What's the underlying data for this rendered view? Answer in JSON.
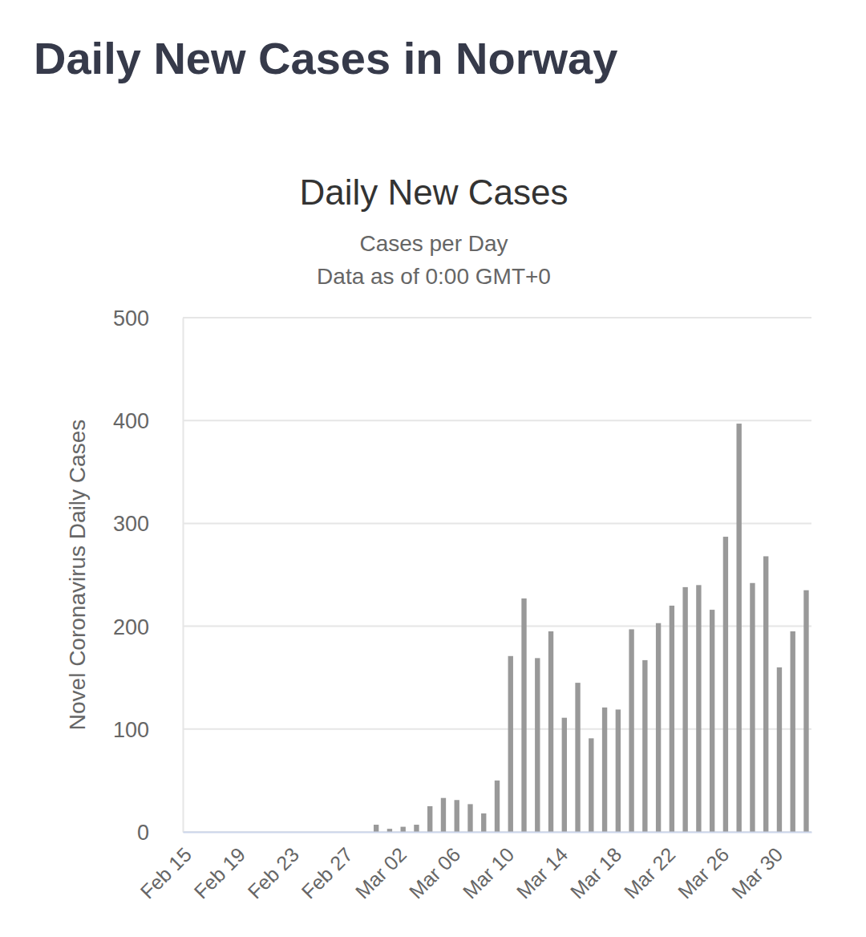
{
  "page_title": "Daily New Cases in Norway",
  "chart_data": {
    "type": "bar",
    "title": "Daily New Cases",
    "subtitle": "Cases per Day",
    "note": "Data as of 0:00 GMT+0",
    "y_label": "Novel Coronavirus Daily Cases",
    "categories": [
      "Feb 15",
      null,
      null,
      null,
      "Feb 19",
      null,
      null,
      null,
      "Feb 23",
      null,
      null,
      null,
      "Feb 27",
      null,
      null,
      null,
      "Mar 02",
      null,
      null,
      null,
      "Mar 06",
      null,
      null,
      null,
      "Mar 10",
      null,
      null,
      null,
      "Mar 14",
      null,
      null,
      null,
      "Mar 18",
      null,
      null,
      null,
      "Mar 22",
      null,
      null,
      null,
      "Mar 26",
      null,
      null,
      null,
      "Mar 30",
      null,
      null
    ],
    "values": [
      0,
      0,
      0,
      0,
      0,
      0,
      0,
      0,
      0,
      0,
      0,
      0,
      0,
      0,
      7,
      3,
      5,
      7,
      25,
      33,
      31,
      27,
      18,
      50,
      171,
      227,
      169,
      195,
      111,
      145,
      91,
      121,
      119,
      197,
      167,
      203,
      220,
      238,
      240,
      216,
      287,
      397,
      242,
      268,
      160,
      195,
      235
    ],
    "color": "#999999",
    "ylim": [
      0,
      500
    ],
    "yticks": [
      0,
      100,
      200,
      300,
      400,
      500
    ],
    "grid": true
  }
}
